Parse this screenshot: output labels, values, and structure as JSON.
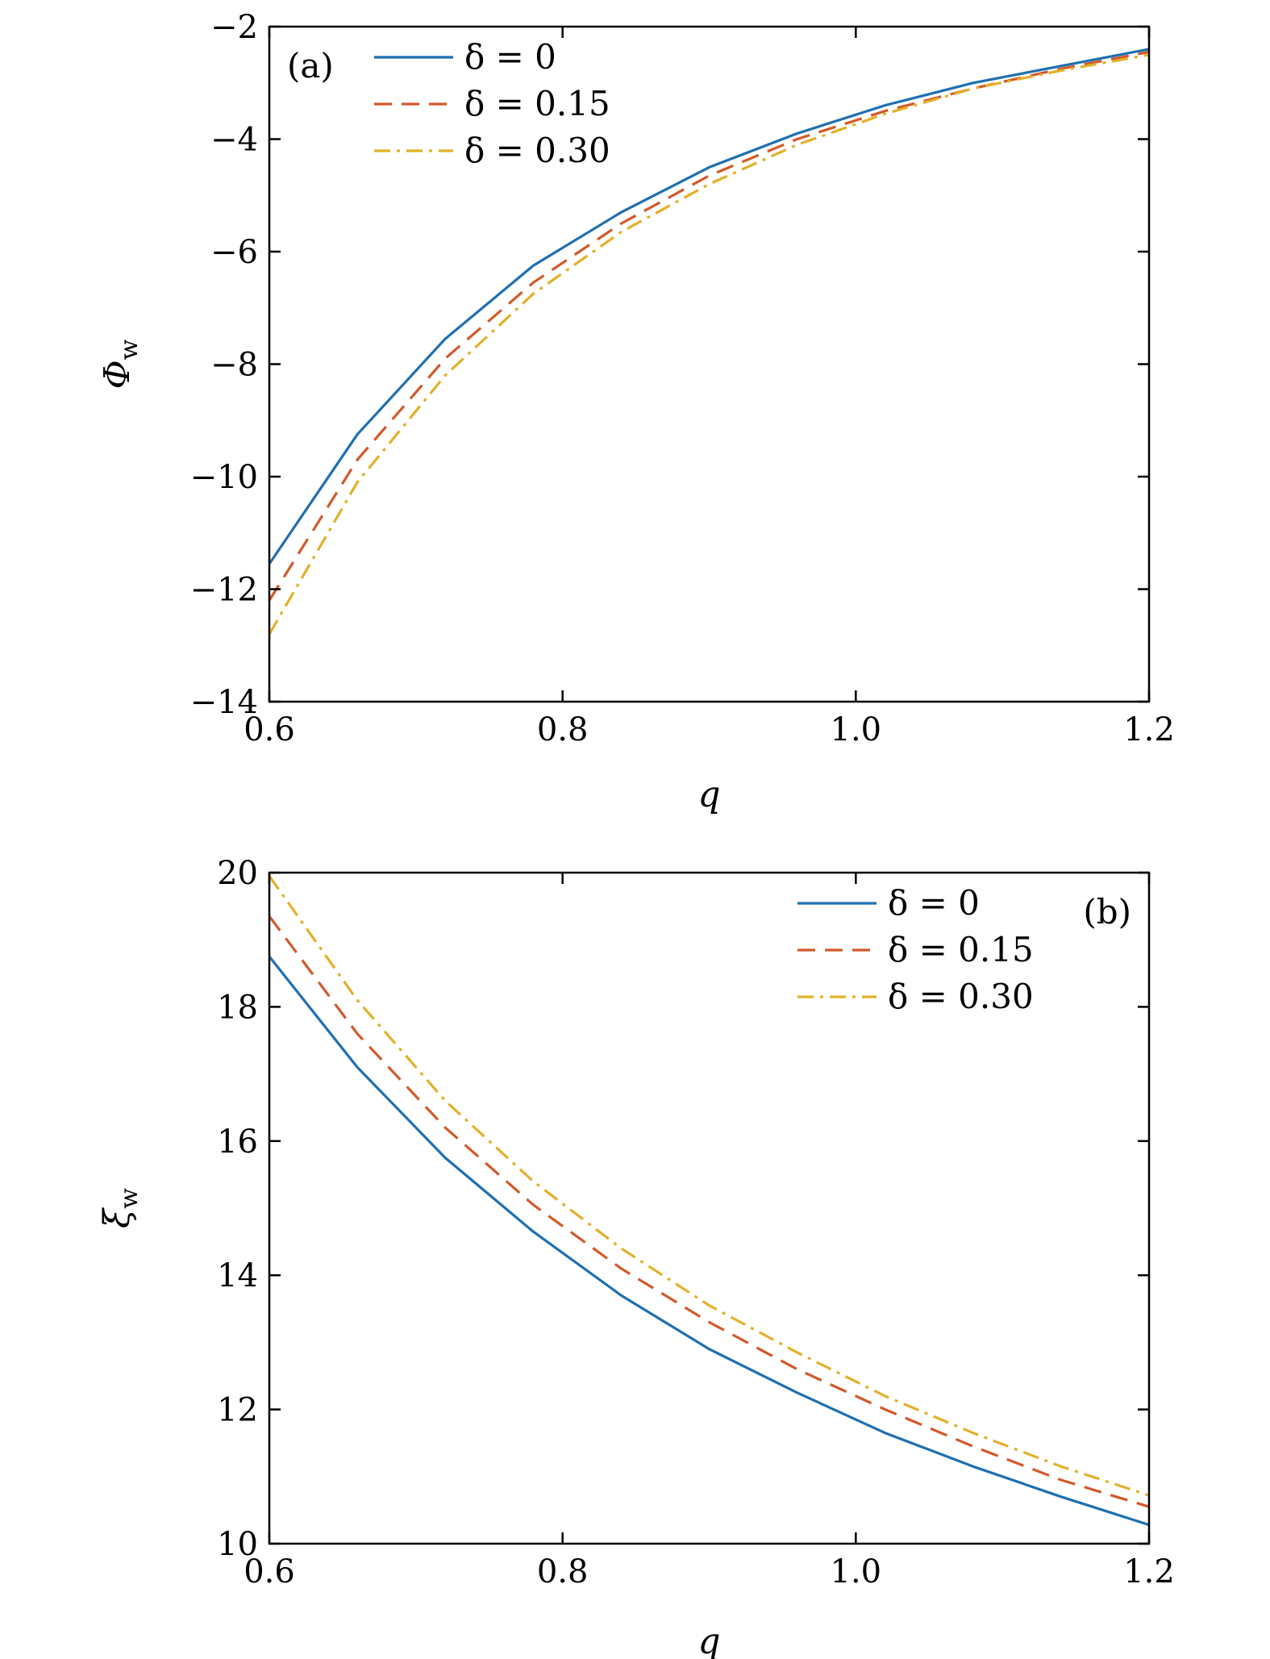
{
  "chart_data": [
    {
      "type": "line",
      "panel_label": "(a)",
      "xlabel": "q",
      "ylabel": "Φ",
      "ylabel_sub": "w",
      "xlim": [
        0.6,
        1.2
      ],
      "ylim": [
        -14,
        -2
      ],
      "xticks": [
        0.6,
        0.8,
        1.0,
        1.2
      ],
      "xtick_labels": [
        "0.6",
        "0.8",
        "1.0",
        "1.2"
      ],
      "yticks": [
        -14,
        -12,
        -10,
        -8,
        -6,
        -4,
        -2
      ],
      "ytick_labels": [
        "−14",
        "−12",
        "−10",
        "−8",
        "−6",
        "−4",
        "−2"
      ],
      "legend_position": "top-left",
      "x": [
        0.6,
        0.66,
        0.72,
        0.78,
        0.84,
        0.9,
        0.96,
        1.02,
        1.08,
        1.14,
        1.2
      ],
      "series": [
        {
          "name": "δ = 0",
          "color": "#1f6fb0",
          "dash": "solid",
          "values": [
            -11.55,
            -9.25,
            -7.55,
            -6.25,
            -5.3,
            -4.5,
            -3.9,
            -3.4,
            -3.0,
            -2.7,
            -2.4
          ]
        },
        {
          "name": "δ = 0.15",
          "color": "#d2592a",
          "dash": "dashed",
          "values": [
            -12.2,
            -9.7,
            -7.9,
            -6.55,
            -5.5,
            -4.65,
            -4.0,
            -3.5,
            -3.1,
            -2.75,
            -2.45
          ]
        },
        {
          "name": "δ = 0.30",
          "color": "#e3b02a",
          "dash": "dashdot",
          "values": [
            -12.8,
            -10.1,
            -8.2,
            -6.75,
            -5.65,
            -4.8,
            -4.1,
            -3.55,
            -3.1,
            -2.78,
            -2.5
          ]
        }
      ]
    },
    {
      "type": "line",
      "panel_label": "(b)",
      "xlabel": "q",
      "ylabel": "ξ",
      "ylabel_sub": "w",
      "xlim": [
        0.6,
        1.2
      ],
      "ylim": [
        10,
        20
      ],
      "xticks": [
        0.6,
        0.8,
        1.0,
        1.2
      ],
      "xtick_labels": [
        "0.6",
        "0.8",
        "1.0",
        "1.2"
      ],
      "yticks": [
        10,
        12,
        14,
        16,
        18,
        20
      ],
      "ytick_labels": [
        "10",
        "12",
        "14",
        "16",
        "18",
        "20"
      ],
      "legend_position": "top-right",
      "x": [
        0.6,
        0.66,
        0.72,
        0.78,
        0.84,
        0.9,
        0.96,
        1.02,
        1.08,
        1.14,
        1.2
      ],
      "series": [
        {
          "name": "δ = 0",
          "color": "#1f6fb0",
          "dash": "solid",
          "values": [
            18.75,
            17.1,
            15.75,
            14.65,
            13.7,
            12.9,
            12.25,
            11.65,
            11.15,
            10.7,
            10.28
          ]
        },
        {
          "name": "δ = 0.15",
          "color": "#d2592a",
          "dash": "dashed",
          "values": [
            19.35,
            17.6,
            16.2,
            15.05,
            14.1,
            13.3,
            12.6,
            12.0,
            11.45,
            10.95,
            10.55
          ]
        },
        {
          "name": "δ = 0.30",
          "color": "#e3b02a",
          "dash": "dashdot",
          "values": [
            19.95,
            18.1,
            16.6,
            15.4,
            14.4,
            13.55,
            12.85,
            12.2,
            11.65,
            11.15,
            10.72
          ]
        }
      ]
    }
  ]
}
